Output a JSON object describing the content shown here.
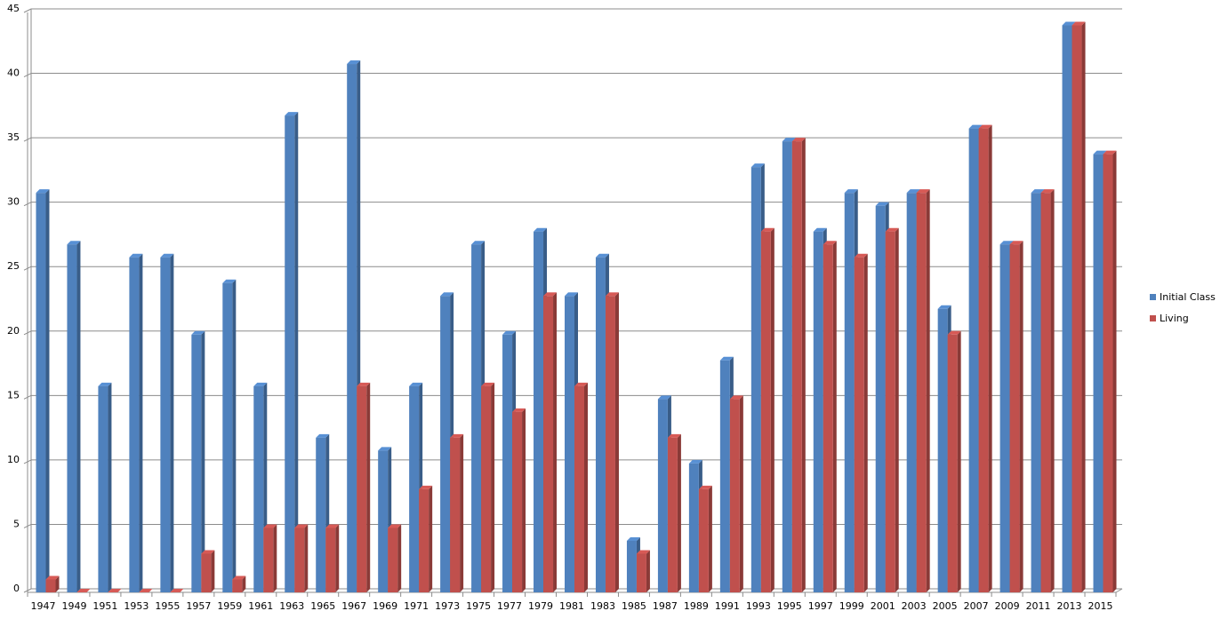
{
  "chart_data": {
    "type": "bar3d",
    "categories": [
      "1947",
      "1949",
      "1951",
      "1953",
      "1955",
      "1957",
      "1959",
      "1961",
      "1963",
      "1965",
      "1967",
      "1969",
      "1971",
      "1973",
      "1975",
      "1977",
      "1979",
      "1981",
      "1983",
      "1985",
      "1987",
      "1989",
      "1991",
      "1993",
      "1995",
      "1997",
      "1999",
      "2001",
      "2003",
      "2005",
      "2007",
      "2009",
      "2011",
      "2013",
      "2015"
    ],
    "series": [
      {
        "name": "Initial Class",
        "color": "#4f81bd",
        "values": [
          31,
          27,
          16,
          26,
          26,
          20,
          24,
          16,
          37,
          12,
          41,
          11,
          16,
          23,
          27,
          20,
          28,
          23,
          26,
          4,
          15,
          10,
          18,
          33,
          35,
          28,
          31,
          30,
          31,
          22,
          36,
          27,
          31,
          44,
          34
        ]
      },
      {
        "name": "Living",
        "color": "#c0504d",
        "values": [
          1,
          0,
          0,
          0,
          0,
          3,
          1,
          5,
          5,
          5,
          16,
          5,
          8,
          12,
          16,
          14,
          23,
          16,
          23,
          3,
          12,
          8,
          15,
          28,
          35,
          27,
          26,
          28,
          31,
          20,
          36,
          27,
          31,
          44,
          34
        ]
      }
    ],
    "ylim": [
      0,
      45
    ],
    "yticks": [
      0,
      5,
      10,
      15,
      20,
      25,
      30,
      35,
      40,
      45
    ],
    "grid": true,
    "legend": "right"
  }
}
